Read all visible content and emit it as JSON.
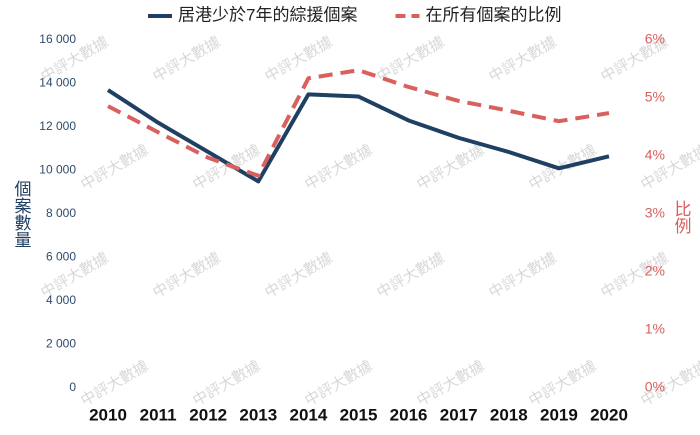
{
  "chart_data": {
    "type": "line",
    "watermark": "中評大數據",
    "y_label": "個案數量",
    "y2_label": "比例",
    "categories": [
      "2010",
      "2011",
      "2012",
      "2013",
      "2014",
      "2015",
      "2016",
      "2017",
      "2018",
      "2019",
      "2020"
    ],
    "series": [
      {
        "name": "居港少於7年的綜援個案",
        "color": "#1f3f63",
        "dashed": false,
        "values": [
          13700,
          12200,
          10850,
          9500,
          13500,
          13400,
          12300,
          11500,
          10850,
          10100,
          10650
        ]
      },
      {
        "name": "在所有個案的比例",
        "color": "#d9605c",
        "dashed": true,
        "axis": "y2",
        "values": [
          4.86,
          4.41,
          3.97,
          3.66,
          5.34,
          5.48,
          5.19,
          4.95,
          4.78,
          4.6,
          4.74
        ]
      }
    ],
    "ylim": [
      0,
      16000
    ],
    "yticks": [
      0,
      {
        "value": 2000,
        "label": "2 000"
      },
      {
        "value": 4000,
        "label": "4 000"
      },
      {
        "value": 6000,
        "label": "6 000"
      },
      {
        "value": 8000,
        "label": "8 000"
      },
      {
        "value": 10000,
        "label": "10 000"
      },
      {
        "value": 12000,
        "label": "12 000"
      },
      {
        "value": 14000,
        "label": "14 000"
      },
      {
        "value": 16000,
        "label": "16 000"
      }
    ],
    "y2lim": [
      0,
      6
    ],
    "y2ticks": [
      {
        "value": 0,
        "label": "0%"
      },
      {
        "value": 1,
        "label": "1%"
      },
      {
        "value": 2,
        "label": "2%"
      },
      {
        "value": 3,
        "label": "3%"
      },
      {
        "value": 4,
        "label": "4%"
      },
      {
        "value": 5,
        "label": "5%"
      },
      {
        "value": 6,
        "label": "6%"
      }
    ],
    "legend": "top"
  }
}
